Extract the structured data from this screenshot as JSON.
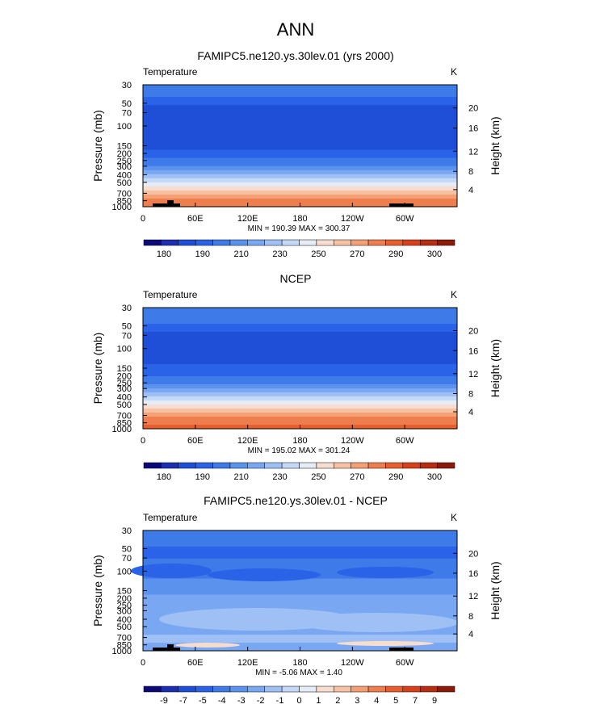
{
  "page_title": "ANN",
  "chart_data": [
    {
      "type": "heatmap",
      "title": "FAMIPC5.ne120.ys.30lev.01 (yrs 2000)",
      "subtitle_left": "Temperature",
      "subtitle_right": "K",
      "ylabel": "Pressure (mb)",
      "ylabel_right": "Height (km)",
      "x_ticks": [
        "0",
        "60E",
        "120E",
        "180",
        "120W",
        "60W"
      ],
      "y_ticks": [
        "30",
        "50",
        "70",
        "100",
        "150",
        "200",
        "250",
        "300",
        "400",
        "500",
        "700",
        "850",
        "1000"
      ],
      "y_right_ticks": [
        "20",
        "16",
        "12",
        "8",
        "4"
      ],
      "stats_text": "MIN = 190.39  MAX = 300.37",
      "colorbar_labels": [
        "180",
        "190",
        "210",
        "230",
        "250",
        "270",
        "290",
        "300"
      ],
      "levels_profile": [
        4,
        4,
        4,
        3,
        3,
        2,
        2,
        2,
        2,
        2,
        2,
        2,
        2,
        2,
        2,
        2,
        3,
        3,
        4,
        4,
        5,
        6,
        7,
        8,
        9,
        10,
        11,
        12,
        13,
        13
      ]
    },
    {
      "type": "heatmap",
      "title": "NCEP",
      "subtitle_left": "Temperature",
      "subtitle_right": "K",
      "ylabel": "Pressure (mb)",
      "ylabel_right": "Height (km)",
      "x_ticks": [
        "0",
        "60E",
        "120E",
        "180",
        "120W",
        "60W"
      ],
      "y_ticks": [
        "30",
        "50",
        "70",
        "100",
        "150",
        "200",
        "250",
        "300",
        "400",
        "500",
        "700",
        "850",
        "1000"
      ],
      "y_right_ticks": [
        "20",
        "16",
        "12",
        "8",
        "4"
      ],
      "stats_text": "MIN = 195.02  MAX = 301.24",
      "colorbar_labels": [
        "180",
        "190",
        "210",
        "230",
        "250",
        "270",
        "290",
        "300"
      ],
      "levels_profile": [
        4,
        4,
        4,
        4,
        3,
        3,
        2,
        2,
        2,
        2,
        2,
        2,
        2,
        2,
        3,
        3,
        3,
        4,
        4,
        5,
        6,
        7,
        8,
        9,
        10,
        11,
        12,
        13,
        13,
        14
      ]
    },
    {
      "type": "heatmap",
      "title": "FAMIPC5.ne120.ys.30lev.01 - NCEP",
      "subtitle_left": "Temperature",
      "subtitle_right": "K",
      "ylabel": "Pressure (mb)",
      "ylabel_right": "Height (km)",
      "x_ticks": [
        "0",
        "60E",
        "120E",
        "180",
        "120W",
        "60W"
      ],
      "y_ticks": [
        "30",
        "50",
        "70",
        "100",
        "150",
        "200",
        "250",
        "300",
        "400",
        "500",
        "700",
        "850",
        "1000"
      ],
      "y_right_ticks": [
        "20",
        "16",
        "12",
        "8",
        "4"
      ],
      "stats_text": "MIN =  -5.06  MAX =   1.40",
      "colorbar_labels": [
        "-9",
        "-7",
        "-5",
        "-4",
        "-3",
        "-2",
        "-1",
        "0",
        "1",
        "2",
        "3",
        "4",
        "5",
        "7",
        "9"
      ],
      "levels_profile": [
        4,
        4,
        4,
        4,
        3,
        3,
        3,
        4,
        4,
        4,
        4,
        4,
        5,
        5,
        5,
        5,
        6,
        6,
        6,
        6,
        6,
        6,
        6,
        6,
        6,
        6,
        7,
        7,
        6,
        6
      ]
    }
  ],
  "colors": {
    "palette": [
      "#0c0a78",
      "#1b2fb0",
      "#1f4fd6",
      "#2a63e8",
      "#3f7be8",
      "#5b92ee",
      "#7aa7f2",
      "#9fc0f5",
      "#c4d9f8",
      "#e5ecf5",
      "#f7ddcf",
      "#f6c2a3",
      "#f59f75",
      "#ef7e4f",
      "#e85e2c",
      "#d8401c",
      "#b82c12",
      "#8c1a0a"
    ],
    "topography": "#000000"
  }
}
